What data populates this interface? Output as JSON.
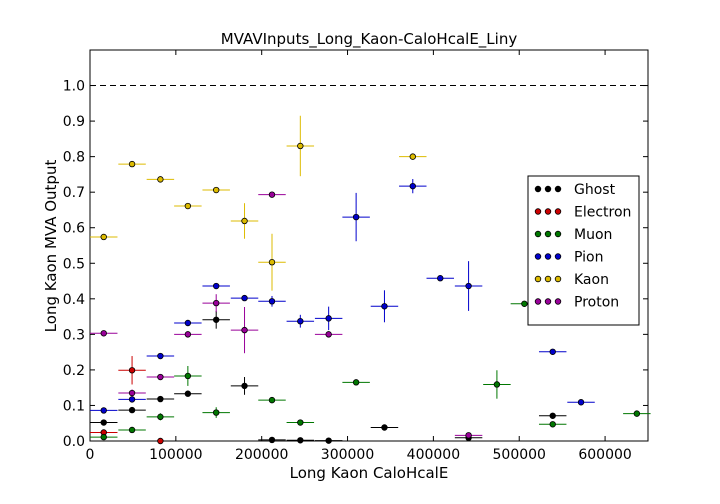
{
  "chart_data": {
    "type": "scatter",
    "title": "MVAVInputs_Long_Kaon-CaloHcalE_Liny",
    "xlabel": "Long Kaon CaloHcalE",
    "ylabel": "Long Kaon MVA Output",
    "xlim": [
      0,
      650000
    ],
    "ylim": [
      0,
      1.1
    ],
    "x_ticks": [
      0,
      100000,
      200000,
      300000,
      400000,
      500000,
      600000
    ],
    "x_tick_labels": [
      "0",
      "100000",
      "200000",
      "300000",
      "400000",
      "500000",
      "600000"
    ],
    "y_ticks": [
      0.0,
      0.1,
      0.2,
      0.3,
      0.4,
      0.5,
      0.6,
      0.7,
      0.8,
      0.9,
      1.0
    ],
    "y_tick_labels": [
      "0.0",
      "0.1",
      "0.2",
      "0.3",
      "0.4",
      "0.5",
      "0.6",
      "0.7",
      "0.8",
      "0.9",
      "1.0"
    ],
    "reference_line": {
      "y": 1.0,
      "style": "dashed"
    },
    "grid": false,
    "legend_position": "center-right",
    "series": [
      {
        "name": "Ghost",
        "color": "#000000",
        "points": [
          {
            "x": 16000,
            "y": 0.052,
            "xerr": 16000,
            "yerr": 0.005
          },
          {
            "x": 49000,
            "y": 0.087,
            "xerr": 16000,
            "yerr": 0.005
          },
          {
            "x": 82000,
            "y": 0.118,
            "xerr": 16000,
            "yerr": 0.005
          },
          {
            "x": 114000,
            "y": 0.133,
            "xerr": 16000,
            "yerr": 0.008
          },
          {
            "x": 147000,
            "y": 0.341,
            "xerr": 16000,
            "yerr": 0.025
          },
          {
            "x": 180000,
            "y": 0.155,
            "xerr": 16000,
            "yerr": 0.025
          },
          {
            "x": 212000,
            "y": 0.003,
            "xerr": 16000,
            "yerr": 0.003
          },
          {
            "x": 245000,
            "y": 0.002,
            "xerr": 16000,
            "yerr": 0.002
          },
          {
            "x": 278000,
            "y": 0.001,
            "xerr": 16000,
            "yerr": 0.001
          },
          {
            "x": 343000,
            "y": 0.038,
            "xerr": 16000,
            "yerr": 0.008
          },
          {
            "x": 441000,
            "y": 0.009,
            "xerr": 16000,
            "yerr": 0.004
          },
          {
            "x": 539000,
            "y": 0.071,
            "xerr": 16000,
            "yerr": 0.008
          }
        ]
      },
      {
        "name": "Electron",
        "color": "#cc0000",
        "points": [
          {
            "x": 16000,
            "y": 0.024,
            "xerr": 16000,
            "yerr": 0.005
          },
          {
            "x": 49000,
            "y": 0.199,
            "xerr": 16000,
            "yerr": 0.04
          },
          {
            "x": 82000,
            "y": 0.0,
            "xerr": 0,
            "yerr": 0
          }
        ]
      },
      {
        "name": "Muon",
        "color": "#007700",
        "points": [
          {
            "x": 16000,
            "y": 0.011,
            "xerr": 16000,
            "yerr": 0.003
          },
          {
            "x": 49000,
            "y": 0.031,
            "xerr": 16000,
            "yerr": 0.004
          },
          {
            "x": 82000,
            "y": 0.068,
            "xerr": 16000,
            "yerr": 0.01
          },
          {
            "x": 114000,
            "y": 0.183,
            "xerr": 16000,
            "yerr": 0.028
          },
          {
            "x": 147000,
            "y": 0.08,
            "xerr": 16000,
            "yerr": 0.015
          },
          {
            "x": 212000,
            "y": 0.115,
            "xerr": 16000,
            "yerr": 0.008
          },
          {
            "x": 245000,
            "y": 0.052,
            "xerr": 16000,
            "yerr": 0.006
          },
          {
            "x": 310000,
            "y": 0.165,
            "xerr": 16000,
            "yerr": 0.008
          },
          {
            "x": 474000,
            "y": 0.159,
            "xerr": 16000,
            "yerr": 0.04
          },
          {
            "x": 506000,
            "y": 0.386,
            "xerr": 16000,
            "yerr": 0.008
          },
          {
            "x": 539000,
            "y": 0.047,
            "xerr": 16000,
            "yerr": 0.006
          },
          {
            "x": 637000,
            "y": 0.077,
            "xerr": 16000,
            "yerr": 0.004
          }
        ]
      },
      {
        "name": "Pion",
        "color": "#0000cc",
        "points": [
          {
            "x": 16000,
            "y": 0.086,
            "xerr": 16000,
            "yerr": 0.004
          },
          {
            "x": 49000,
            "y": 0.117,
            "xerr": 16000,
            "yerr": 0.005
          },
          {
            "x": 82000,
            "y": 0.239,
            "xerr": 16000,
            "yerr": 0.005
          },
          {
            "x": 114000,
            "y": 0.332,
            "xerr": 16000,
            "yerr": 0.006
          },
          {
            "x": 147000,
            "y": 0.436,
            "xerr": 16000,
            "yerr": 0.008
          },
          {
            "x": 180000,
            "y": 0.402,
            "xerr": 16000,
            "yerr": 0.008
          },
          {
            "x": 212000,
            "y": 0.393,
            "xerr": 16000,
            "yerr": 0.015
          },
          {
            "x": 245000,
            "y": 0.337,
            "xerr": 16000,
            "yerr": 0.018
          },
          {
            "x": 278000,
            "y": 0.345,
            "xerr": 16000,
            "yerr": 0.033
          },
          {
            "x": 310000,
            "y": 0.63,
            "xerr": 16000,
            "yerr": 0.068
          },
          {
            "x": 343000,
            "y": 0.379,
            "xerr": 16000,
            "yerr": 0.045
          },
          {
            "x": 376000,
            "y": 0.717,
            "xerr": 16000,
            "yerr": 0.02
          },
          {
            "x": 408000,
            "y": 0.458,
            "xerr": 16000,
            "yerr": 0.006
          },
          {
            "x": 441000,
            "y": 0.436,
            "xerr": 16000,
            "yerr": 0.07
          },
          {
            "x": 539000,
            "y": 0.251,
            "xerr": 16000,
            "yerr": 0.005
          },
          {
            "x": 572000,
            "y": 0.109,
            "xerr": 16000,
            "yerr": 0.004
          }
        ]
      },
      {
        "name": "Kaon",
        "color": "#ddbb00",
        "points": [
          {
            "x": 16000,
            "y": 0.574,
            "xerr": 16000,
            "yerr": 0.005
          },
          {
            "x": 49000,
            "y": 0.779,
            "xerr": 16000,
            "yerr": 0.004
          },
          {
            "x": 82000,
            "y": 0.736,
            "xerr": 16000,
            "yerr": 0.005
          },
          {
            "x": 114000,
            "y": 0.661,
            "xerr": 16000,
            "yerr": 0.006
          },
          {
            "x": 147000,
            "y": 0.706,
            "xerr": 16000,
            "yerr": 0.007
          },
          {
            "x": 180000,
            "y": 0.619,
            "xerr": 16000,
            "yerr": 0.05
          },
          {
            "x": 212000,
            "y": 0.503,
            "xerr": 16000,
            "yerr": 0.08
          },
          {
            "x": 245000,
            "y": 0.83,
            "xerr": 16000,
            "yerr": 0.085
          },
          {
            "x": 376000,
            "y": 0.8,
            "xerr": 16000,
            "yerr": 0.006
          }
        ]
      },
      {
        "name": "Proton",
        "color": "#990099",
        "points": [
          {
            "x": 16000,
            "y": 0.303,
            "xerr": 16000,
            "yerr": 0.005
          },
          {
            "x": 49000,
            "y": 0.135,
            "xerr": 16000,
            "yerr": 0.01
          },
          {
            "x": 82000,
            "y": 0.18,
            "xerr": 16000,
            "yerr": 0.005
          },
          {
            "x": 114000,
            "y": 0.3,
            "xerr": 16000,
            "yerr": 0.008
          },
          {
            "x": 147000,
            "y": 0.388,
            "xerr": 16000,
            "yerr": 0.025
          },
          {
            "x": 180000,
            "y": 0.312,
            "xerr": 16000,
            "yerr": 0.065
          },
          {
            "x": 212000,
            "y": 0.693,
            "xerr": 16000,
            "yerr": 0.005
          },
          {
            "x": 278000,
            "y": 0.3,
            "xerr": 16000,
            "yerr": 0.006
          },
          {
            "x": 441000,
            "y": 0.016,
            "xerr": 16000,
            "yerr": 0.004
          }
        ]
      }
    ]
  }
}
